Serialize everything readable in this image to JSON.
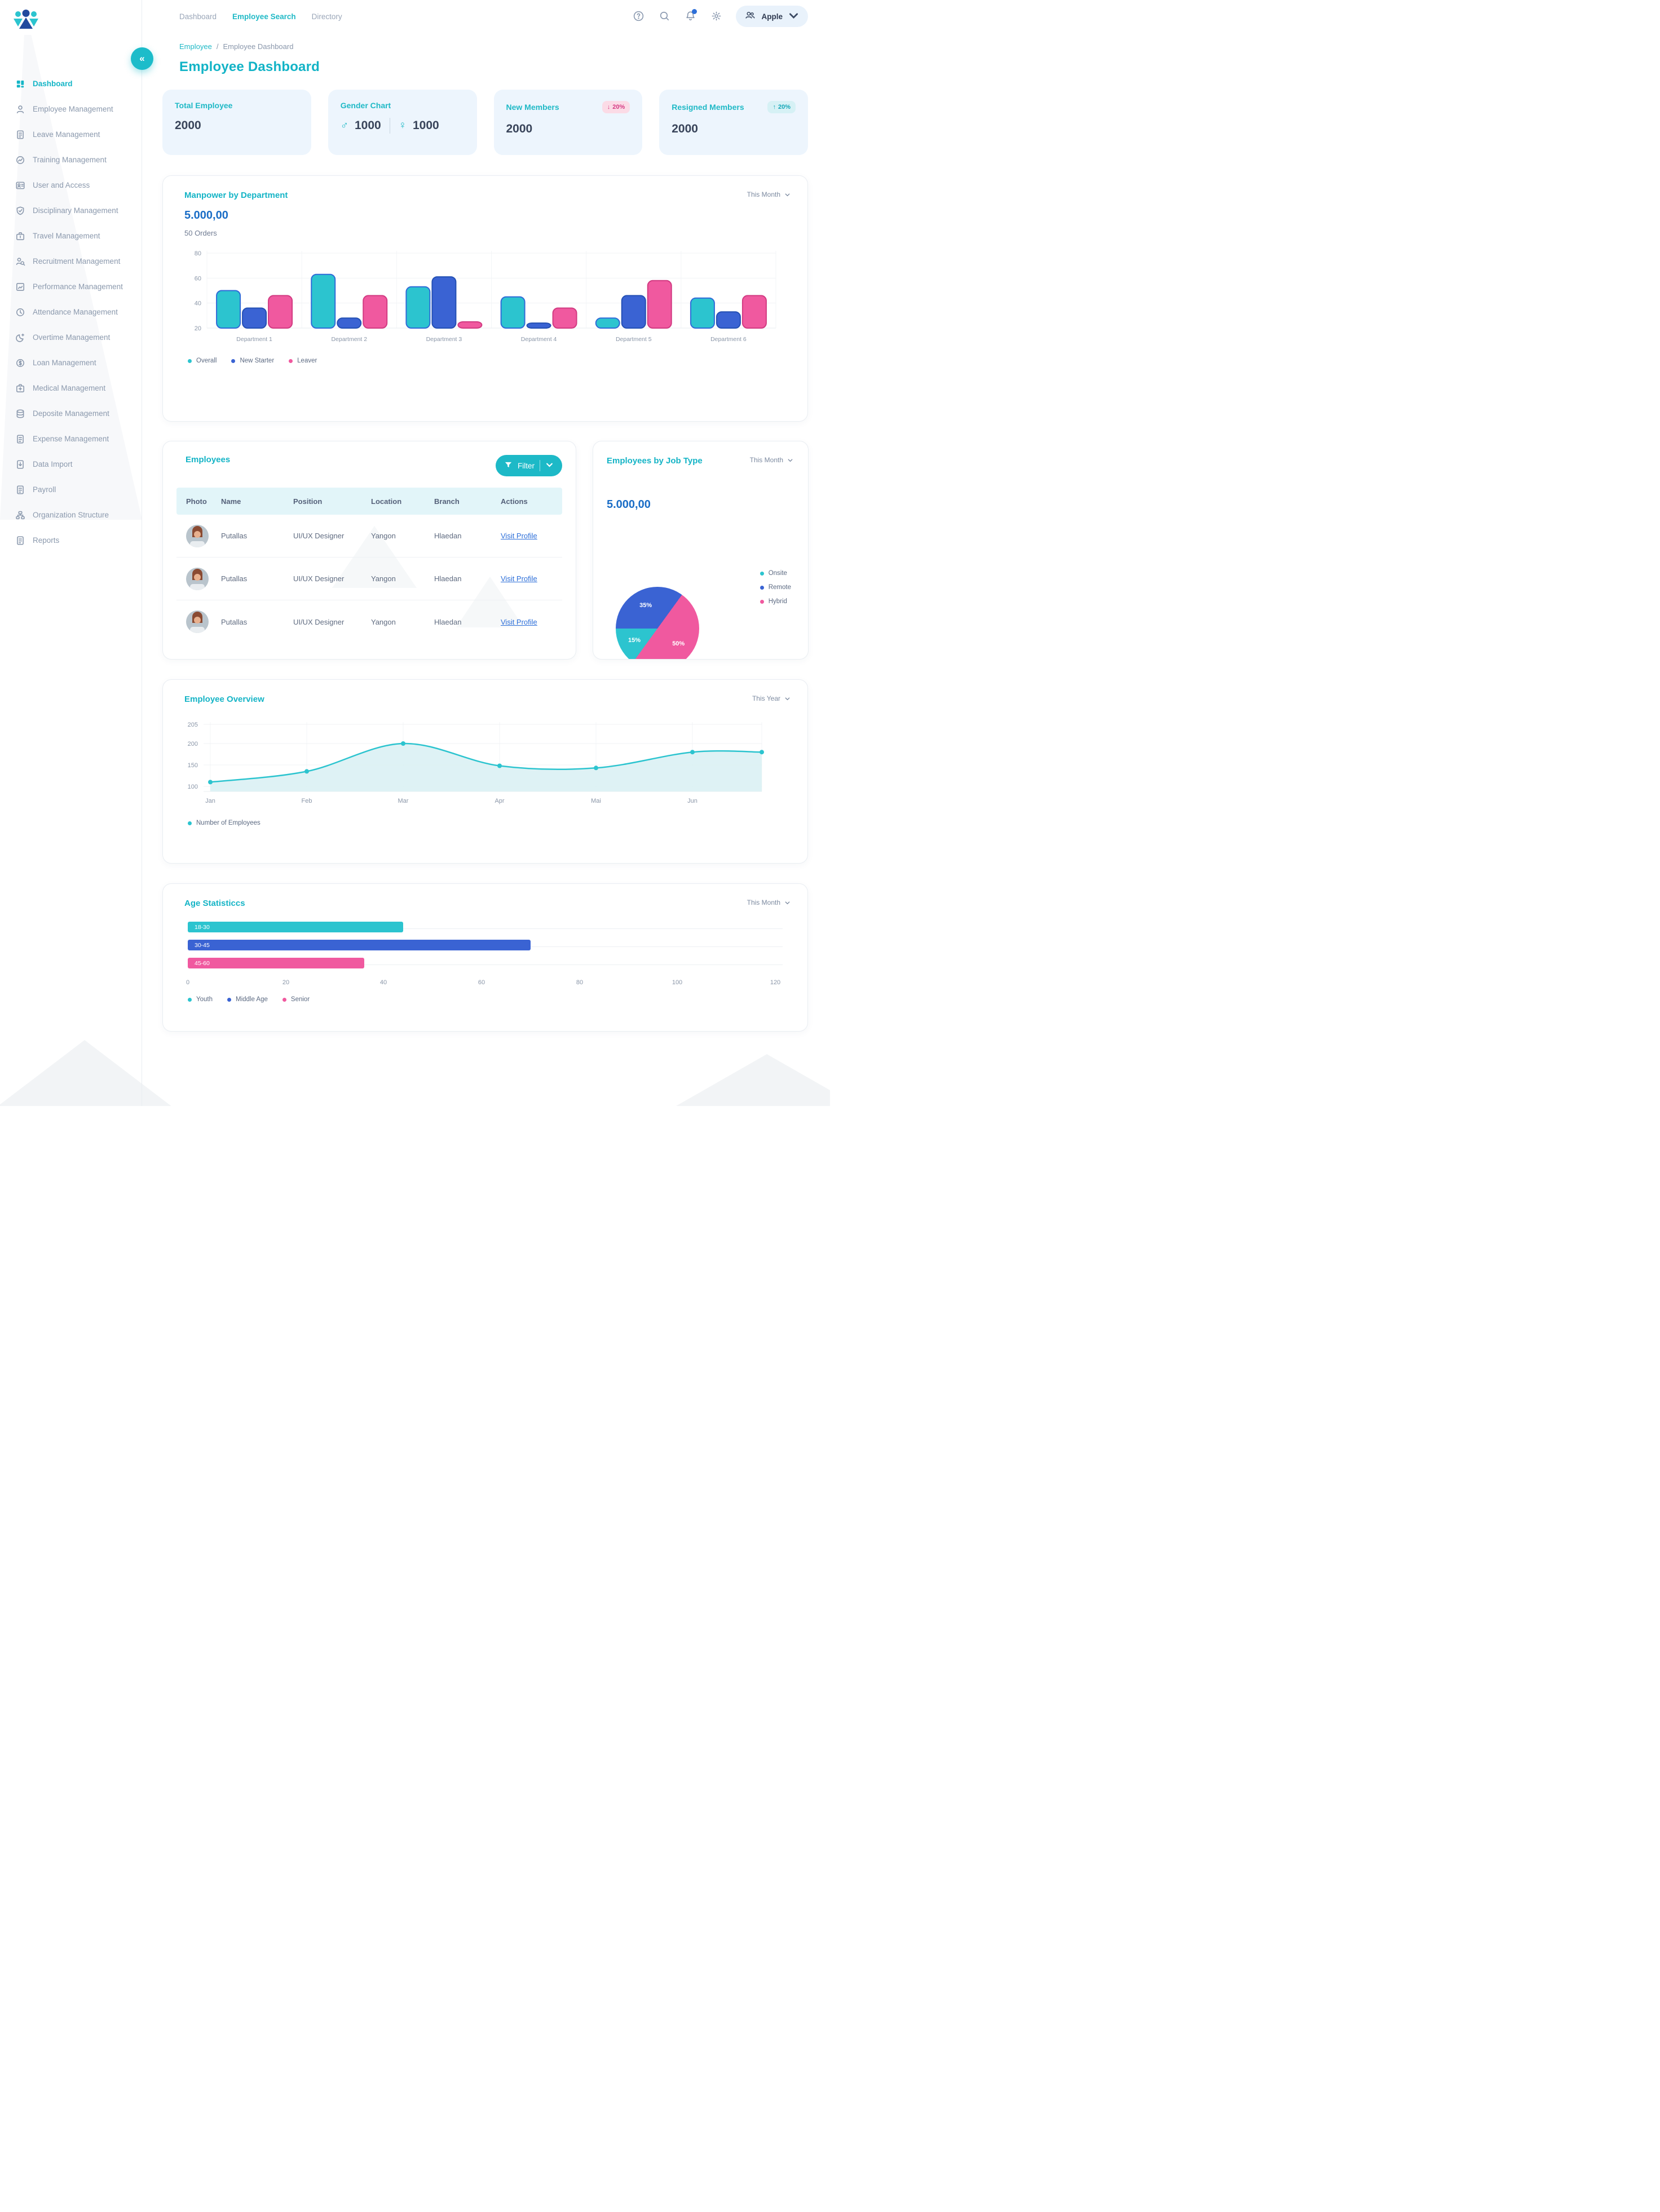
{
  "colors": {
    "accent_teal": "#14b5c6",
    "series_teal": "#2cc4cf",
    "series_blue": "#3a63d3",
    "series_pink": "#f0599f",
    "amount_blue": "#1a6dc6",
    "badge_down_bg": "#fbdbe6",
    "badge_down_text": "#d53a83",
    "badge_up_bg": "#d6f1f5",
    "badge_up_text": "#13a7b8",
    "card_bg": "#edf5fd",
    "table_header_bg": "#e2f5f9",
    "link_blue": "#2d6fd9",
    "notification_dot": "#2d6fd9"
  },
  "sidebar": {
    "collapse_glyph": "«",
    "items": [
      {
        "label": "Dashboard",
        "icon": "dashboard-grid-icon",
        "glyph": "grid",
        "active": true
      },
      {
        "label": "Employee Management",
        "icon": "person-icon",
        "glyph": "person",
        "active": false
      },
      {
        "label": "Leave Management",
        "icon": "document-icon",
        "glyph": "doc",
        "active": false
      },
      {
        "label": "Training Management",
        "icon": "trend-circle-icon",
        "glyph": "trend",
        "active": false
      },
      {
        "label": "User and Access",
        "icon": "user-card-icon",
        "glyph": "usercard",
        "active": false
      },
      {
        "label": "Disciplinary Management",
        "icon": "shield-check-icon",
        "glyph": "shield",
        "active": false
      },
      {
        "label": "Travel Management",
        "icon": "briefcase-icon",
        "glyph": "case",
        "active": false
      },
      {
        "label": "Recruitment Management",
        "icon": "person-search-icon",
        "glyph": "psearch",
        "active": false
      },
      {
        "label": "Performance Management",
        "icon": "chart-icon",
        "glyph": "chart",
        "active": false
      },
      {
        "label": "Attendance Management",
        "icon": "clock-icon",
        "glyph": "clock",
        "active": false
      },
      {
        "label": "Overtime Management",
        "icon": "moon-plus-icon",
        "glyph": "moon",
        "active": false
      },
      {
        "label": "Loan Management",
        "icon": "dollar-circle-icon",
        "glyph": "dollar",
        "active": false
      },
      {
        "label": "Medical Management",
        "icon": "medical-case-icon",
        "glyph": "medical",
        "active": false
      },
      {
        "label": "Deposite Management",
        "icon": "database-icon",
        "glyph": "db",
        "active": false
      },
      {
        "label": "Expense Management",
        "icon": "document-edit-icon",
        "glyph": "doc",
        "active": false
      },
      {
        "label": "Data Import",
        "icon": "import-icon",
        "glyph": "import",
        "active": false
      },
      {
        "label": "Payroll",
        "icon": "document-icon",
        "glyph": "doc",
        "active": false
      },
      {
        "label": "Organization Structure",
        "icon": "org-chart-icon",
        "glyph": "org",
        "active": false
      },
      {
        "label": "Reports",
        "icon": "report-icon",
        "glyph": "doc",
        "active": false
      }
    ]
  },
  "topbar": {
    "links": [
      {
        "label": "Dashboard",
        "active": false
      },
      {
        "label": "Employee Search",
        "active": true
      },
      {
        "label": "Directory",
        "active": false
      }
    ],
    "profile": {
      "name": "Apple"
    }
  },
  "breadcrumb": {
    "root": "Employee",
    "separator": "/",
    "current": "Employee Dashboard"
  },
  "page": {
    "title": "Employee Dashboard"
  },
  "stats": {
    "cards": [
      {
        "title": "Total Employee",
        "value": "2000"
      },
      {
        "title": "Gender Chart",
        "male_symbol": "♂",
        "male": "1000",
        "female_symbol": "♀",
        "female": "1000"
      },
      {
        "title": "New Members",
        "value": "2000",
        "badge_arrow": "↓",
        "badge": "20%",
        "trend": "down"
      },
      {
        "title": "Resigned Members",
        "value": "2000",
        "badge_arrow": "↑",
        "badge": "20%",
        "trend": "up"
      }
    ]
  },
  "manpower": {
    "period": "This Month",
    "amount": "5.000,00",
    "orders": "50 Orders"
  },
  "employees": {
    "title": "Employees",
    "filter_label": "Filter",
    "columns": [
      "Photo",
      "Name",
      "Position",
      "Location",
      "Branch",
      "Actions"
    ],
    "rows": [
      {
        "name": "Putallas",
        "position": "UI/UX Designer",
        "location": "Yangon",
        "branch": "Hlaedan",
        "action": "Visit Profile"
      },
      {
        "name": "Putallas",
        "position": "UI/UX Designer",
        "location": "Yangon",
        "branch": "Hlaedan",
        "action": "Visit Profile"
      },
      {
        "name": "Putallas",
        "position": "UI/UX Designer",
        "location": "Yangon",
        "branch": "Hlaedan",
        "action": "Visit Profile"
      }
    ]
  },
  "jobtype": {
    "period": "This Month",
    "amount": "5.000,00"
  },
  "overview": {
    "period": "This Year"
  },
  "age": {
    "period": "This Month"
  },
  "chart_data": [
    {
      "type": "bar",
      "title": "Manpower by Department",
      "categories": [
        "Department 1",
        "Department 2",
        "Department 3",
        "Department 4",
        "Department 5",
        "Department 6"
      ],
      "series": [
        {
          "name": "Overall",
          "color": "#2cc4cf",
          "stroke": "#2f6bd8",
          "values": [
            50,
            63,
            53,
            45,
            28,
            44
          ]
        },
        {
          "name": "New Starter",
          "color": "#3a63d3",
          "stroke": "#2450b4",
          "values": [
            36,
            28,
            61,
            24,
            46,
            33
          ]
        },
        {
          "name": "Leaver",
          "color": "#f0599f",
          "stroke": "#d23b82",
          "values": [
            46,
            46,
            25,
            36,
            58,
            46
          ]
        }
      ],
      "ylim": [
        20,
        80
      ],
      "yticks": [
        80,
        60,
        40,
        20
      ],
      "grid": true,
      "legend_position": "bottom-left"
    },
    {
      "type": "pie",
      "title": "Employees by  Job Type",
      "start_angle_deg": 216,
      "slices": [
        {
          "label": "Onsite",
          "pct": 15,
          "color": "#2cc4cf"
        },
        {
          "label": "Remote",
          "pct": 35,
          "color": "#3a63d3"
        },
        {
          "label": "Hybrid",
          "pct": 50,
          "color": "#f0599f"
        }
      ],
      "legend_position": "right"
    },
    {
      "type": "line",
      "title": "Employee Overview",
      "x": [
        "Jan",
        "Feb",
        "Mar",
        "Apr",
        "Mai",
        "Jun"
      ],
      "series": [
        {
          "name": "Number of Employees",
          "color": "#2cc4cf",
          "area_color": "#daf1f4",
          "values": [
            110,
            135,
            200,
            148,
            143,
            180
          ]
        }
      ],
      "yticks": [
        205,
        200,
        150,
        100
      ],
      "area": true,
      "grid": true,
      "legend_position": "bottom-left"
    },
    {
      "type": "bar",
      "orientation": "horizontal",
      "title": "Age Statisticcs",
      "categories": [
        "18-30",
        "30-45",
        "45-60"
      ],
      "values": [
        44,
        70,
        36
      ],
      "colors": [
        "#2cc4cf",
        "#3a63d3",
        "#f0599f"
      ],
      "series_labels": [
        "Youth",
        "Middle Age",
        "Senior"
      ],
      "xticks": [
        0,
        20,
        40,
        60,
        80,
        100,
        120
      ],
      "xlim": [
        0,
        120
      ],
      "legend_position": "bottom-left"
    }
  ]
}
